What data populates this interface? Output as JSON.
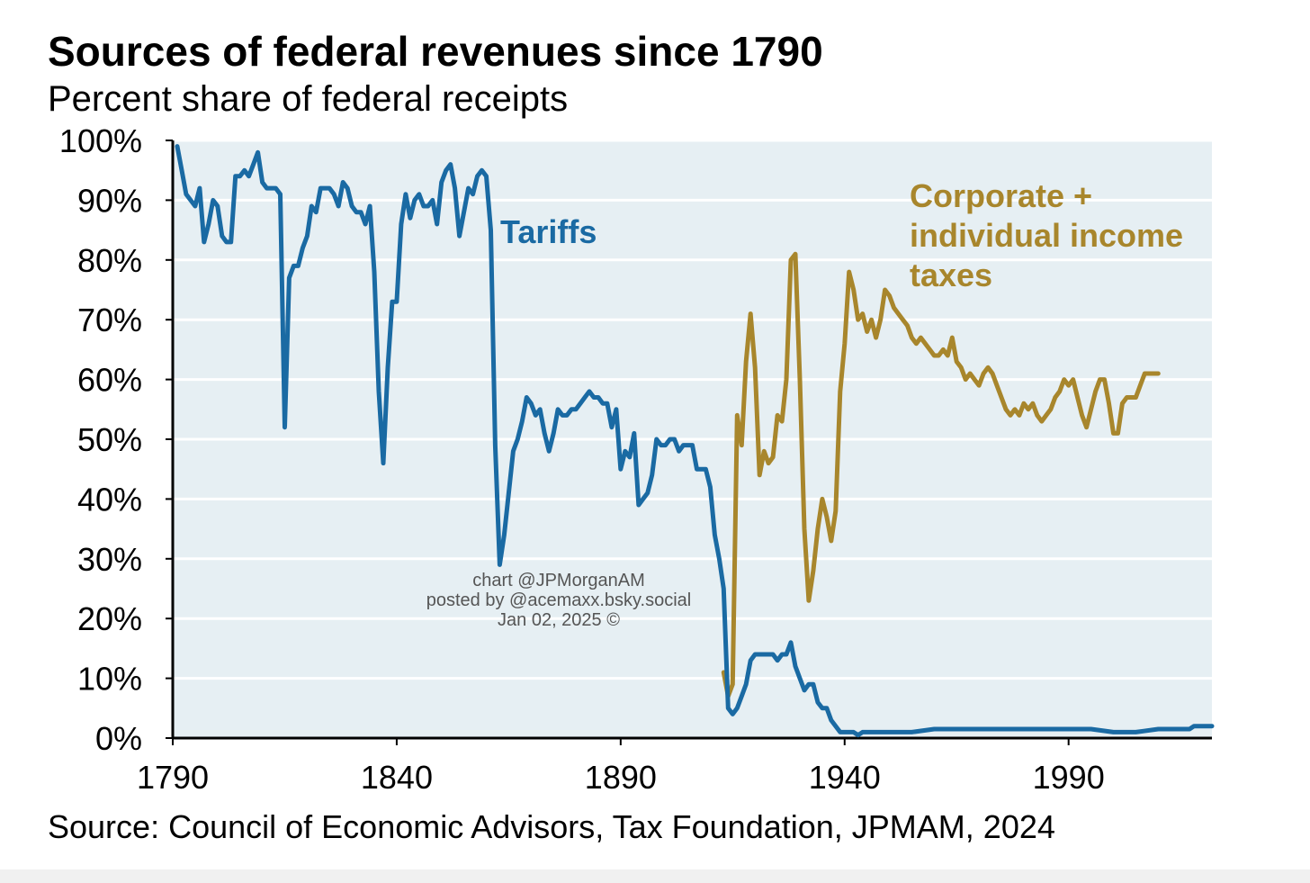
{
  "colors": {
    "plot_background": "#e6eff3",
    "gridline": "#ffffff",
    "tariffs": "#1a6aa3",
    "income_taxes": "#a8862c",
    "axis": "#000000"
  },
  "watermark": {
    "line1": "chart @JPMorganAM",
    "line2": "posted by @acemaxx.bsky.social",
    "line3": "Jan 02, 2025 ©"
  },
  "chart_data": {
    "type": "line",
    "title": "Sources of federal revenues since 1790",
    "subtitle": "Percent share of federal receipts",
    "source": "Source: Council of Economic Advisors, Tax Foundation, JPMAM, 2024",
    "xlabel": "",
    "ylabel": "",
    "xlim": [
      1790,
      2022
    ],
    "ylim": [
      0,
      100
    ],
    "x_ticks": [
      1790,
      1840,
      1890,
      1940,
      1990
    ],
    "x_tick_labels": [
      "1790",
      "1840",
      "1890",
      "1940",
      "1990"
    ],
    "y_ticks": [
      0,
      10,
      20,
      30,
      40,
      50,
      60,
      70,
      80,
      90,
      100
    ],
    "y_tick_labels": [
      "0%",
      "10%",
      "20%",
      "30%",
      "40%",
      "50%",
      "60%",
      "70%",
      "80%",
      "90%",
      "100%"
    ],
    "grid": "horizontal",
    "legend": "none (direct labels)",
    "series": [
      {
        "name": "Tariffs",
        "label_lines": [
          "Tariffs"
        ],
        "color": "#1a6aa3",
        "points": [
          [
            1791,
            99
          ],
          [
            1792,
            95
          ],
          [
            1793,
            91
          ],
          [
            1794,
            90
          ],
          [
            1795,
            89
          ],
          [
            1796,
            92
          ],
          [
            1797,
            83
          ],
          [
            1798,
            86
          ],
          [
            1799,
            90
          ],
          [
            1800,
            89
          ],
          [
            1801,
            84
          ],
          [
            1802,
            83
          ],
          [
            1803,
            83
          ],
          [
            1804,
            94
          ],
          [
            1805,
            94
          ],
          [
            1806,
            95
          ],
          [
            1807,
            94
          ],
          [
            1808,
            96
          ],
          [
            1809,
            98
          ],
          [
            1810,
            93
          ],
          [
            1811,
            92
          ],
          [
            1812,
            92
          ],
          [
            1813,
            92
          ],
          [
            1814,
            91
          ],
          [
            1815,
            52
          ],
          [
            1816,
            77
          ],
          [
            1817,
            79
          ],
          [
            1818,
            79
          ],
          [
            1819,
            82
          ],
          [
            1820,
            84
          ],
          [
            1821,
            89
          ],
          [
            1822,
            88
          ],
          [
            1823,
            92
          ],
          [
            1824,
            92
          ],
          [
            1825,
            92
          ],
          [
            1826,
            91
          ],
          [
            1827,
            89
          ],
          [
            1828,
            93
          ],
          [
            1829,
            92
          ],
          [
            1830,
            89
          ],
          [
            1831,
            88
          ],
          [
            1832,
            88
          ],
          [
            1833,
            86
          ],
          [
            1834,
            89
          ],
          [
            1835,
            78
          ],
          [
            1836,
            58
          ],
          [
            1837,
            46
          ],
          [
            1838,
            62
          ],
          [
            1839,
            73
          ],
          [
            1840,
            73
          ],
          [
            1841,
            86
          ],
          [
            1842,
            91
          ],
          [
            1843,
            87
          ],
          [
            1844,
            90
          ],
          [
            1845,
            91
          ],
          [
            1846,
            89
          ],
          [
            1847,
            89
          ],
          [
            1848,
            90
          ],
          [
            1849,
            86
          ],
          [
            1850,
            93
          ],
          [
            1851,
            95
          ],
          [
            1852,
            96
          ],
          [
            1853,
            92
          ],
          [
            1854,
            84
          ],
          [
            1855,
            88
          ],
          [
            1856,
            92
          ],
          [
            1857,
            91
          ],
          [
            1858,
            94
          ],
          [
            1859,
            95
          ],
          [
            1860,
            94
          ],
          [
            1861,
            85
          ],
          [
            1862,
            49
          ],
          [
            1863,
            29
          ],
          [
            1864,
            34
          ],
          [
            1865,
            41
          ],
          [
            1866,
            48
          ],
          [
            1867,
            50
          ],
          [
            1868,
            53
          ],
          [
            1869,
            57
          ],
          [
            1870,
            56
          ],
          [
            1871,
            54
          ],
          [
            1872,
            55
          ],
          [
            1873,
            51
          ],
          [
            1874,
            48
          ],
          [
            1875,
            51
          ],
          [
            1876,
            55
          ],
          [
            1877,
            54
          ],
          [
            1878,
            54
          ],
          [
            1879,
            55
          ],
          [
            1880,
            55
          ],
          [
            1881,
            56
          ],
          [
            1882,
            57
          ],
          [
            1883,
            58
          ],
          [
            1884,
            57
          ],
          [
            1885,
            57
          ],
          [
            1886,
            56
          ],
          [
            1887,
            56
          ],
          [
            1888,
            52
          ],
          [
            1889,
            55
          ],
          [
            1890,
            45
          ],
          [
            1891,
            48
          ],
          [
            1892,
            47
          ],
          [
            1893,
            51
          ],
          [
            1894,
            39
          ],
          [
            1895,
            40
          ],
          [
            1896,
            41
          ],
          [
            1897,
            44
          ],
          [
            1898,
            50
          ],
          [
            1899,
            49
          ],
          [
            1900,
            49
          ],
          [
            1901,
            50
          ],
          [
            1902,
            50
          ],
          [
            1903,
            48
          ],
          [
            1904,
            49
          ],
          [
            1905,
            49
          ],
          [
            1906,
            49
          ],
          [
            1907,
            45
          ],
          [
            1908,
            45
          ],
          [
            1909,
            45
          ],
          [
            1910,
            42
          ],
          [
            1911,
            34
          ],
          [
            1912,
            30
          ],
          [
            1913,
            25
          ],
          [
            1914,
            5
          ],
          [
            1915,
            4
          ],
          [
            1916,
            5
          ],
          [
            1917,
            7
          ],
          [
            1918,
            9
          ],
          [
            1919,
            13
          ],
          [
            1920,
            14
          ],
          [
            1921,
            14
          ],
          [
            1922,
            14
          ],
          [
            1923,
            14
          ],
          [
            1924,
            14
          ],
          [
            1925,
            13
          ],
          [
            1926,
            14
          ],
          [
            1927,
            14
          ],
          [
            1928,
            16
          ],
          [
            1929,
            12
          ],
          [
            1930,
            10
          ],
          [
            1931,
            8
          ],
          [
            1932,
            9
          ],
          [
            1933,
            9
          ],
          [
            1934,
            6
          ],
          [
            1935,
            5
          ],
          [
            1936,
            5
          ],
          [
            1937,
            3
          ],
          [
            1938,
            2
          ],
          [
            1939,
            1
          ],
          [
            1940,
            1
          ],
          [
            1941,
            1
          ],
          [
            1942,
            1
          ],
          [
            1943,
            0.5
          ],
          [
            1944,
            1
          ],
          [
            1945,
            1
          ],
          [
            1946,
            1
          ],
          [
            1947,
            1
          ],
          [
            1948,
            1
          ],
          [
            1949,
            1
          ],
          [
            1950,
            1
          ],
          [
            1955,
            1
          ],
          [
            1960,
            1.5
          ],
          [
            1965,
            1.5
          ],
          [
            1970,
            1.5
          ],
          [
            1975,
            1.5
          ],
          [
            1980,
            1.5
          ],
          [
            1985,
            1.5
          ],
          [
            1990,
            1.5
          ],
          [
            1995,
            1.5
          ],
          [
            2000,
            1
          ],
          [
            2005,
            1
          ],
          [
            2010,
            1.5
          ],
          [
            2015,
            1.5
          ],
          [
            2017,
            1.5
          ],
          [
            2018,
            2
          ],
          [
            2019,
            2
          ],
          [
            2020,
            2
          ],
          [
            2021,
            2
          ],
          [
            2022,
            2
          ]
        ]
      },
      {
        "name": "Corporate + individual income taxes",
        "label_lines": [
          "Corporate +",
          "individual income",
          "taxes"
        ],
        "color": "#a8862c",
        "points": [
          [
            1913,
            11
          ],
          [
            1914,
            7
          ],
          [
            1915,
            9
          ],
          [
            1916,
            54
          ],
          [
            1917,
            49
          ],
          [
            1918,
            63
          ],
          [
            1919,
            71
          ],
          [
            1920,
            62
          ],
          [
            1921,
            44
          ],
          [
            1922,
            48
          ],
          [
            1923,
            46
          ],
          [
            1924,
            47
          ],
          [
            1925,
            54
          ],
          [
            1926,
            53
          ],
          [
            1927,
            60
          ],
          [
            1928,
            80
          ],
          [
            1929,
            81
          ],
          [
            1930,
            60
          ],
          [
            1931,
            35
          ],
          [
            1932,
            23
          ],
          [
            1933,
            28
          ],
          [
            1934,
            35
          ],
          [
            1935,
            40
          ],
          [
            1936,
            37
          ],
          [
            1937,
            33
          ],
          [
            1938,
            38
          ],
          [
            1939,
            58
          ],
          [
            1940,
            66
          ],
          [
            1941,
            78
          ],
          [
            1942,
            75
          ],
          [
            1943,
            70
          ],
          [
            1944,
            71
          ],
          [
            1945,
            68
          ],
          [
            1946,
            70
          ],
          [
            1947,
            67
          ],
          [
            1948,
            70
          ],
          [
            1949,
            75
          ],
          [
            1950,
            74
          ],
          [
            1951,
            72
          ],
          [
            1952,
            71
          ],
          [
            1953,
            70
          ],
          [
            1954,
            69
          ],
          [
            1955,
            67
          ],
          [
            1956,
            66
          ],
          [
            1957,
            67
          ],
          [
            1958,
            66
          ],
          [
            1959,
            65
          ],
          [
            1960,
            64
          ],
          [
            1961,
            64
          ],
          [
            1962,
            65
          ],
          [
            1963,
            64
          ],
          [
            1964,
            67
          ],
          [
            1965,
            63
          ],
          [
            1966,
            62
          ],
          [
            1967,
            60
          ],
          [
            1968,
            61
          ],
          [
            1969,
            60
          ],
          [
            1970,
            59
          ],
          [
            1971,
            61
          ],
          [
            1972,
            62
          ],
          [
            1973,
            61
          ],
          [
            1974,
            59
          ],
          [
            1975,
            57
          ],
          [
            1976,
            55
          ],
          [
            1977,
            54
          ],
          [
            1978,
            55
          ],
          [
            1979,
            54
          ],
          [
            1980,
            56
          ],
          [
            1981,
            55
          ],
          [
            1982,
            56
          ],
          [
            1983,
            54
          ],
          [
            1984,
            53
          ],
          [
            1985,
            54
          ],
          [
            1986,
            55
          ],
          [
            1987,
            57
          ],
          [
            1988,
            58
          ],
          [
            1989,
            60
          ],
          [
            1990,
            59
          ],
          [
            1991,
            60
          ],
          [
            1992,
            57
          ],
          [
            1993,
            54
          ],
          [
            1994,
            52
          ],
          [
            1995,
            55
          ],
          [
            1996,
            58
          ],
          [
            1997,
            60
          ],
          [
            1998,
            60
          ],
          [
            1999,
            56
          ],
          [
            2000,
            51
          ],
          [
            2001,
            51
          ],
          [
            2002,
            56
          ],
          [
            2003,
            57
          ],
          [
            2004,
            57
          ],
          [
            2005,
            57
          ],
          [
            2006,
            59
          ],
          [
            2007,
            61
          ],
          [
            2008,
            61
          ],
          [
            2009,
            61
          ],
          [
            2010,
            61
          ]
        ]
      }
    ]
  }
}
